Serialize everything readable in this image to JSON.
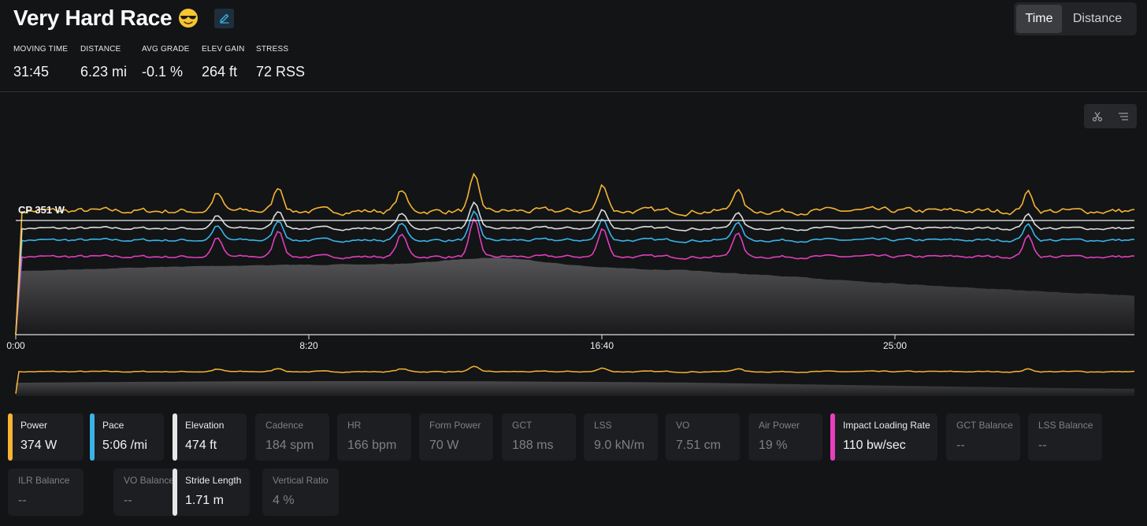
{
  "activity": {
    "title": "Very Hard Race",
    "emoji_icon": "smiling-face-with-sunglasses-icon",
    "edit_icon": "edit-pencil-icon"
  },
  "view_toggle": {
    "options": [
      "Time",
      "Distance"
    ],
    "selected": "Time"
  },
  "stats": [
    {
      "label": "MOVING TIME",
      "value": "31:45"
    },
    {
      "label": "DISTANCE",
      "value": "6.23 mi"
    },
    {
      "label": "AVG GRADE",
      "value": "-0.1 %"
    },
    {
      "label": "ELEV GAIN",
      "value": "264 ft"
    },
    {
      "label": "STRESS",
      "value": "72 RSS"
    }
  ],
  "chart_tools": [
    "scissors-icon",
    "filter-lines-icon"
  ],
  "chart_data": {
    "type": "line",
    "x_unit": "elapsed time",
    "x_ticks": [
      "0:00",
      "8:20",
      "16:40",
      "25:00"
    ],
    "reference_line": {
      "label": "CP 351 W"
    },
    "series": [
      {
        "name": "Power",
        "color": "#f5b433"
      },
      {
        "name": "Pace",
        "color": "#3bb3e8"
      },
      {
        "name": "Impact Loading Rate",
        "color": "#e03fb8"
      },
      {
        "name": "Stride Length",
        "color": "#dcdcdc"
      },
      {
        "name": "Elevation",
        "color": "#4a4a4a"
      }
    ]
  },
  "metrics_row1": [
    {
      "label": "Power",
      "value": "374 W",
      "active": true,
      "color": "#f5b433"
    },
    {
      "label": "Pace",
      "value": "5:06 /mi",
      "active": true,
      "color": "#3bb3e8"
    },
    {
      "label": "Elevation",
      "value": "474 ft",
      "active": true,
      "color": "#e6e6e6"
    },
    {
      "label": "Cadence",
      "value": "184 spm",
      "active": false
    },
    {
      "label": "HR",
      "value": "166 bpm",
      "active": false
    },
    {
      "label": "Form Power",
      "value": "70 W",
      "active": false
    },
    {
      "label": "GCT",
      "value": "188 ms",
      "active": false
    },
    {
      "label": "LSS",
      "value": "9.0 kN/m",
      "active": false
    },
    {
      "label": "VO",
      "value": "7.51 cm",
      "active": false
    },
    {
      "label": "Air Power",
      "value": "19 %",
      "active": false
    },
    {
      "label": "Impact Loading Rate",
      "value": "110 bw/sec",
      "active": true,
      "color": "#e83fbf"
    },
    {
      "label": "GCT Balance",
      "value": "--",
      "active": false
    },
    {
      "label": "LSS Balance",
      "value": "--",
      "active": false
    }
  ],
  "metrics_row2": [
    {
      "label": "ILR Balance",
      "value": "--",
      "active": false
    },
    {
      "label": "VO Balance",
      "value": "--",
      "active": false
    },
    {
      "label": "Stride Length",
      "value": "1.71 m",
      "active": true,
      "color": "#e6e6e6"
    },
    {
      "label": "Vertical Ratio",
      "value": "4 %",
      "active": false
    }
  ]
}
